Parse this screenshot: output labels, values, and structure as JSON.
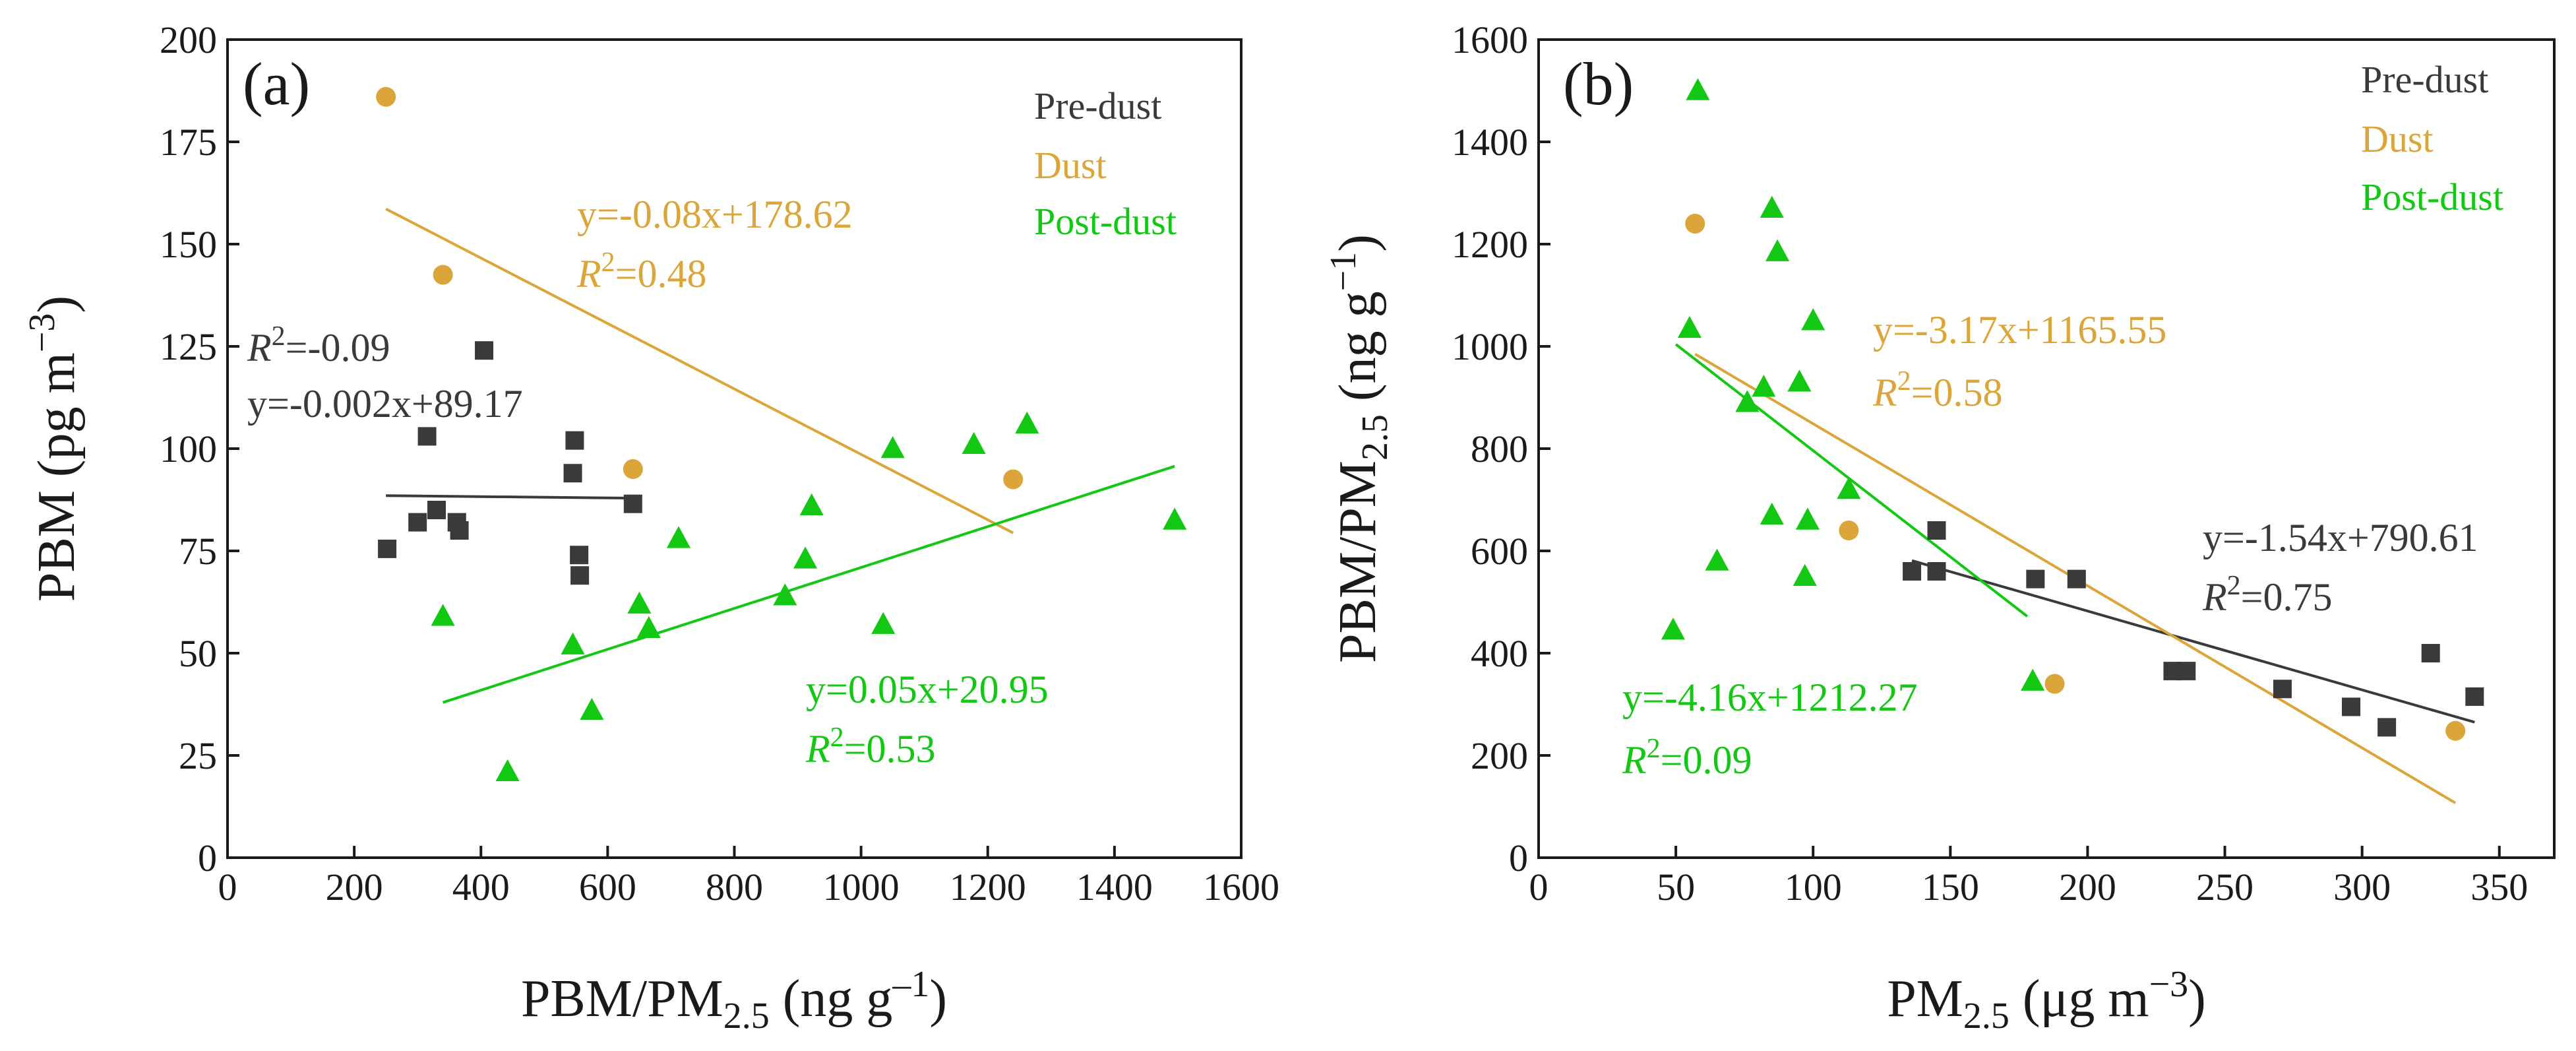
{
  "colors": {
    "pre": "#3a3a3a",
    "dust": "#dba53a",
    "post": "#12c812",
    "axis": "#1a1a1a"
  },
  "chart_data": [
    {
      "type": "scatter",
      "panel_label": "(a)",
      "xlabel": "PBM/PM2.5 (ng g−1)",
      "xlabel_parts": {
        "main": "PBM/PM",
        "sub": "2.5",
        "tail": " (ng g",
        "sup": "–1",
        "end": ")"
      },
      "ylabel": "PBM (pg m−3)",
      "ylabel_parts": {
        "main": "PBM (pg m",
        "sup": "−3",
        "end": ")"
      },
      "xlim": [
        0,
        1600
      ],
      "ylim": [
        0,
        200
      ],
      "xticks": [
        0,
        200,
        400,
        600,
        800,
        1000,
        1200,
        1400,
        1600
      ],
      "yticks": [
        0,
        25,
        50,
        75,
        100,
        125,
        150,
        175,
        200
      ],
      "legend": [
        "Pre-dust",
        "Dust",
        "Post-dust"
      ],
      "series": [
        {
          "name": "Pre-dust",
          "marker": "square",
          "color_key": "pre",
          "points": [
            [
              252,
              75.5
            ],
            [
              300,
              82
            ],
            [
              315,
              103
            ],
            [
              330,
              85
            ],
            [
              362,
              82
            ],
            [
              366,
              80
            ],
            [
              405,
              124
            ],
            [
              545,
              94
            ],
            [
              548,
              102
            ],
            [
              555,
              74
            ],
            [
              556,
              69
            ],
            [
              640,
              86.5
            ]
          ],
          "fit": {
            "x": [
              250,
              640
            ],
            "y": [
              88.5,
              87.9
            ]
          }
        },
        {
          "name": "Dust",
          "marker": "circle",
          "color_key": "dust",
          "points": [
            [
              250,
              186
            ],
            [
              340,
              142.5
            ],
            [
              640,
              95
            ],
            [
              1240,
              92.5
            ]
          ],
          "fit": {
            "x": [
              250,
              1240
            ],
            "y": [
              158.6,
              79.4
            ]
          }
        },
        {
          "name": "Post-dust",
          "marker": "triangle",
          "color_key": "post",
          "points": [
            [
              340,
              59
            ],
            [
              442,
              21
            ],
            [
              545,
              52
            ],
            [
              575,
              36
            ],
            [
              650,
              62
            ],
            [
              665,
              56
            ],
            [
              712,
              78
            ],
            [
              880,
              64
            ],
            [
              912,
              73
            ],
            [
              922,
              86
            ],
            [
              1035,
              57
            ],
            [
              1050,
              100
            ],
            [
              1178,
              101
            ],
            [
              1262,
              106
            ],
            [
              1495,
              82.5
            ]
          ],
          "fit": {
            "x": [
              340,
              1495
            ],
            "y": [
              37.95,
              95.7
            ]
          }
        }
      ],
      "annotations": [
        {
          "color_key": "dust",
          "eq": "y=-0.08x+178.62",
          "r2": "=0.48"
        },
        {
          "color_key": "pre",
          "eq": "y=-0.002x+89.17",
          "r2": "=-0.09"
        },
        {
          "color_key": "post",
          "eq": "y=0.05x+20.95",
          "r2": "=0.53"
        }
      ]
    },
    {
      "type": "scatter",
      "panel_label": "(b)",
      "xlabel": "PM2.5 (μg m−3)",
      "xlabel_parts": {
        "main": "PM",
        "sub": "2.5",
        "tail": " (μg m",
        "sup": "−3",
        "end": ")"
      },
      "ylabel": "PBM/PM2.5 (ng g−1)",
      "ylabel_parts": {
        "main": "PBM/PM",
        "sub": "2.5",
        "tail": " (ng g",
        "sup": "−1",
        "end": ")"
      },
      "xlim": [
        0,
        370
      ],
      "ylim": [
        0,
        1600
      ],
      "xticks": [
        0,
        50,
        100,
        150,
        200,
        250,
        300,
        350
      ],
      "yticks": [
        0,
        200,
        400,
        600,
        800,
        1000,
        1200,
        1400,
        1600
      ],
      "legend": [
        "Pre-dust",
        "Dust",
        "Post-dust"
      ],
      "series": [
        {
          "name": "Pre-dust",
          "marker": "square",
          "color_key": "pre",
          "points": [
            [
              136,
              560
            ],
            [
              145,
              560
            ],
            [
              145,
              640
            ],
            [
              181,
              545
            ],
            [
              196,
              545
            ],
            [
              231,
              365
            ],
            [
              236,
              365
            ],
            [
              271,
              330
            ],
            [
              296,
              295
            ],
            [
              309,
              255
            ],
            [
              325,
              400
            ],
            [
              341,
              315
            ]
          ],
          "fit": {
            "x": [
              136,
              341
            ],
            "y": [
              581,
              265
            ]
          }
        },
        {
          "name": "Dust",
          "marker": "circle",
          "color_key": "dust",
          "points": [
            [
              57,
              1240
            ],
            [
              113,
              640
            ],
            [
              188,
              340
            ],
            [
              334,
              248
            ]
          ],
          "fit": {
            "x": [
              57,
              334
            ],
            "y": [
              985,
              107
            ]
          }
        },
        {
          "name": "Post-dust",
          "marker": "triangle",
          "color_key": "post",
          "points": [
            [
              49,
              445
            ],
            [
              55,
              1035
            ],
            [
              58,
              1500
            ],
            [
              65,
              580
            ],
            [
              76,
              890
            ],
            [
              82,
              920
            ],
            [
              85,
              670
            ],
            [
              85,
              1270
            ],
            [
              87,
              1185
            ],
            [
              95,
              930
            ],
            [
              97,
              550
            ],
            [
              98,
              660
            ],
            [
              100,
              1050
            ],
            [
              113,
              720
            ],
            [
              180,
              345
            ]
          ],
          "fit": {
            "x": [
              50,
              178
            ],
            "y": [
              1004,
              472
            ]
          }
        }
      ],
      "annotations": [
        {
          "color_key": "dust",
          "eq": "y=-3.17x+1165.55",
          "r2": "=0.58"
        },
        {
          "color_key": "pre",
          "eq": "y=-1.54x+790.61",
          "r2": "=0.75"
        },
        {
          "color_key": "post",
          "eq": "y=-4.16x+1212.27",
          "r2": "=0.09"
        }
      ]
    }
  ]
}
